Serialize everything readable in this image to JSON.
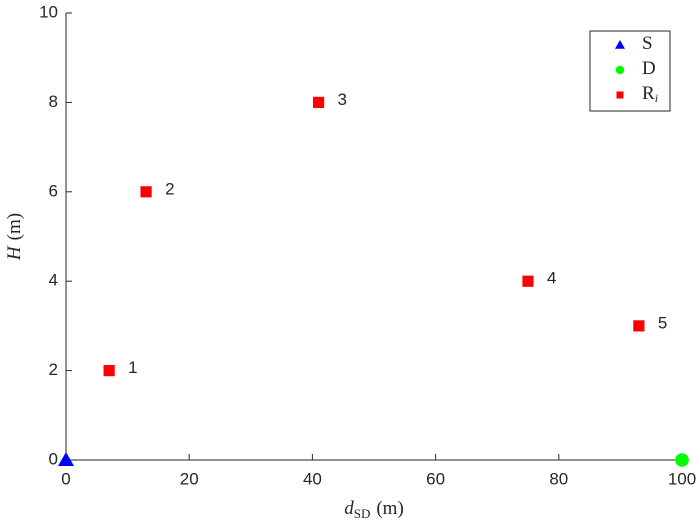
{
  "chart_data": {
    "type": "scatter",
    "xlabel": {
      "symbol": "d",
      "subscript": "SD",
      "unit": "(m)"
    },
    "ylabel": {
      "symbol": "H",
      "unit": "(m)"
    },
    "xlim": [
      0,
      100
    ],
    "xticks": [
      0,
      20,
      40,
      60,
      80,
      100
    ],
    "ylim": [
      0,
      10
    ],
    "yticks": [
      0,
      2,
      4,
      6,
      8,
      10
    ],
    "legend": "upper right",
    "series": [
      {
        "name": "S",
        "color": "#0000ff",
        "marker": "triangle",
        "x": [
          0
        ],
        "values": [
          0
        ]
      },
      {
        "name": "D",
        "color": "#00ff00",
        "marker": "circle",
        "x": [
          100
        ],
        "values": [
          0
        ]
      },
      {
        "name": "R",
        "name_subscript": "i",
        "color": "#ff0000",
        "marker": "square",
        "x": [
          7,
          13,
          41,
          75,
          93
        ],
        "values": [
          2,
          6,
          8,
          4,
          3
        ],
        "point_labels": [
          "1",
          "2",
          "3",
          "4",
          "5"
        ]
      }
    ]
  }
}
